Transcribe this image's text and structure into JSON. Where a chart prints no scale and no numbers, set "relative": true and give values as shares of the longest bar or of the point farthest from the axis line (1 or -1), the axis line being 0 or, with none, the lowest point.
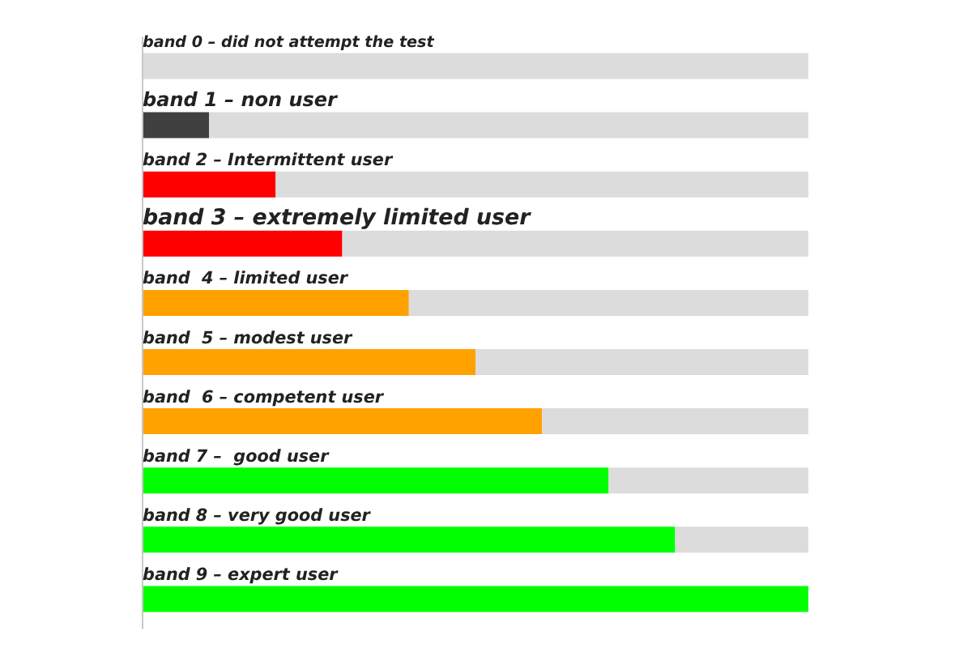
{
  "chart_data": {
    "type": "bar",
    "orientation": "horizontal",
    "stacked": true,
    "relative": true,
    "categories": [
      "band 0 – did not attempt the test",
      "band 1 – non user",
      "band 2 – Intermittent user",
      "band 3 – extremely limited user",
      "band  4 – limited user",
      "band  5 – modest user",
      "band  6 – competent user",
      "band 7 –  good user",
      "band 8 – very good user",
      "band 9 – expert user"
    ],
    "series": [
      {
        "colors": [
          "#404040",
          "#404040",
          "#ff0000",
          "#ff0000",
          "#ffa200",
          "#ffa200",
          "#ffa200",
          "#00ff00",
          "#00ff00",
          "#00ff00"
        ],
        "values": [
          null,
          0.1,
          0.2,
          0.3,
          0.4,
          0.5,
          0.6,
          0.7,
          0.8,
          1
        ]
      },
      {
        "color": "#dcdcdc",
        "values": [
          1,
          0.9,
          0.8,
          0.7,
          0.6,
          0.5,
          0.4,
          0.3,
          0.2,
          null
        ]
      }
    ]
  }
}
